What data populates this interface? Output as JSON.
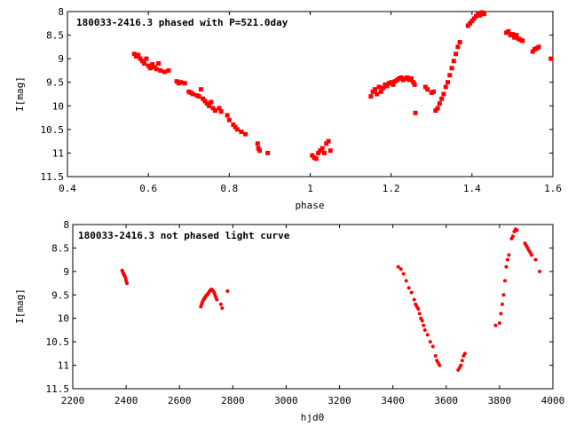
{
  "chart_data": [
    {
      "type": "scatter",
      "title": "180033-2416.3 phased with P=521.0day",
      "xlabel": "phase",
      "ylabel": "I[mag]",
      "xlim": [
        0.4,
        1.6
      ],
      "ylim": [
        11.5,
        8.0
      ],
      "y_inverted": true,
      "grid": false,
      "xticks": [
        "0.4",
        "0.6",
        "0.8",
        "1",
        "1.2",
        "1.4",
        "1.6"
      ],
      "yticks": [
        "8",
        "8.5",
        "9",
        "9.5",
        "10",
        "10.5",
        "11",
        "11.5"
      ],
      "marker_color": "#ff0000",
      "marker": "filled-square",
      "series": [
        {
          "points": [
            [
              0.565,
              8.9
            ],
            [
              0.57,
              8.95
            ],
            [
              0.575,
              8.92
            ],
            [
              0.58,
              9.0
            ],
            [
              0.585,
              9.05
            ],
            [
              0.59,
              9.1
            ],
            [
              0.595,
              9.0
            ],
            [
              0.6,
              9.15
            ],
            [
              0.605,
              9.2
            ],
            [
              0.61,
              9.12
            ],
            [
              0.615,
              9.18
            ],
            [
              0.62,
              9.22
            ],
            [
              0.625,
              9.1
            ],
            [
              0.63,
              9.25
            ],
            [
              0.64,
              9.28
            ],
            [
              0.65,
              9.25
            ],
            [
              0.67,
              9.48
            ],
            [
              0.675,
              9.52
            ],
            [
              0.68,
              9.5
            ],
            [
              0.69,
              9.52
            ],
            [
              0.7,
              9.7
            ],
            [
              0.705,
              9.72
            ],
            [
              0.71,
              9.75
            ],
            [
              0.72,
              9.78
            ],
            [
              0.725,
              9.8
            ],
            [
              0.73,
              9.65
            ],
            [
              0.735,
              9.85
            ],
            [
              0.74,
              9.9
            ],
            [
              0.745,
              9.95
            ],
            [
              0.75,
              10.0
            ],
            [
              0.755,
              9.92
            ],
            [
              0.76,
              10.05
            ],
            [
              0.765,
              10.1
            ],
            [
              0.775,
              10.05
            ],
            [
              0.78,
              10.12
            ],
            [
              0.795,
              10.2
            ],
            [
              0.8,
              10.3
            ],
            [
              0.81,
              10.4
            ],
            [
              0.815,
              10.45
            ],
            [
              0.82,
              10.5
            ],
            [
              0.83,
              10.55
            ],
            [
              0.84,
              10.6
            ],
            [
              0.87,
              10.8
            ],
            [
              0.872,
              10.9
            ],
            [
              0.875,
              10.95
            ],
            [
              0.895,
              11.0
            ],
            [
              1.005,
              11.05
            ],
            [
              1.01,
              11.1
            ],
            [
              1.015,
              11.12
            ],
            [
              1.02,
              11.0
            ],
            [
              1.025,
              10.95
            ],
            [
              1.03,
              10.9
            ],
            [
              1.035,
              11.0
            ],
            [
              1.04,
              10.8
            ],
            [
              1.045,
              10.75
            ],
            [
              1.05,
              10.95
            ],
            [
              1.15,
              9.8
            ],
            [
              1.155,
              9.7
            ],
            [
              1.16,
              9.65
            ],
            [
              1.165,
              9.75
            ],
            [
              1.17,
              9.6
            ],
            [
              1.175,
              9.7
            ],
            [
              1.18,
              9.62
            ],
            [
              1.185,
              9.55
            ],
            [
              1.19,
              9.58
            ],
            [
              1.195,
              9.52
            ],
            [
              1.2,
              9.5
            ],
            [
              1.205,
              9.55
            ],
            [
              1.21,
              9.48
            ],
            [
              1.215,
              9.45
            ],
            [
              1.22,
              9.42
            ],
            [
              1.225,
              9.4
            ],
            [
              1.23,
              9.45
            ],
            [
              1.235,
              9.42
            ],
            [
              1.24,
              9.4
            ],
            [
              1.245,
              9.45
            ],
            [
              1.25,
              9.42
            ],
            [
              1.255,
              9.5
            ],
            [
              1.258,
              9.55
            ],
            [
              1.26,
              10.15
            ],
            [
              1.285,
              9.6
            ],
            [
              1.29,
              9.65
            ],
            [
              1.3,
              9.72
            ],
            [
              1.305,
              9.7
            ],
            [
              1.31,
              10.1
            ],
            [
              1.315,
              10.05
            ],
            [
              1.32,
              9.95
            ],
            [
              1.325,
              9.85
            ],
            [
              1.33,
              9.75
            ],
            [
              1.335,
              9.6
            ],
            [
              1.34,
              9.5
            ],
            [
              1.345,
              9.35
            ],
            [
              1.35,
              9.2
            ],
            [
              1.355,
              9.05
            ],
            [
              1.36,
              8.9
            ],
            [
              1.365,
              8.75
            ],
            [
              1.37,
              8.65
            ],
            [
              1.39,
              8.3
            ],
            [
              1.395,
              8.25
            ],
            [
              1.4,
              8.2
            ],
            [
              1.405,
              8.15
            ],
            [
              1.41,
              8.1
            ],
            [
              1.415,
              8.05
            ],
            [
              1.42,
              8.08
            ],
            [
              1.425,
              8.02
            ],
            [
              1.43,
              8.05
            ],
            [
              1.485,
              8.45
            ],
            [
              1.49,
              8.42
            ],
            [
              1.495,
              8.5
            ],
            [
              1.5,
              8.48
            ],
            [
              1.505,
              8.55
            ],
            [
              1.51,
              8.5
            ],
            [
              1.515,
              8.58
            ],
            [
              1.52,
              8.6
            ],
            [
              1.525,
              8.62
            ],
            [
              1.55,
              8.85
            ],
            [
              1.555,
              8.8
            ],
            [
              1.56,
              8.78
            ],
            [
              1.565,
              8.75
            ],
            [
              1.595,
              9.0
            ]
          ]
        }
      ]
    },
    {
      "type": "scatter",
      "title": "180033-2416.3 not phased light curve",
      "xlabel": "hjd0",
      "ylabel": "I[mag]",
      "xlim": [
        2200,
        4000
      ],
      "ylim": [
        11.5,
        8.0
      ],
      "y_inverted": true,
      "grid": false,
      "xticks": [
        "2200",
        "2400",
        "2600",
        "2800",
        "3000",
        "3200",
        "3400",
        "3600",
        "3800",
        "4000"
      ],
      "yticks": [
        "8",
        "8.5",
        "9",
        "9.5",
        "10",
        "10.5",
        "11",
        "11.5"
      ],
      "marker_color": "#ff0000",
      "marker": "filled-dot",
      "series": [
        {
          "points": [
            [
              2385,
              8.98
            ],
            [
              2388,
              9.02
            ],
            [
              2390,
              9.05
            ],
            [
              2393,
              9.08
            ],
            [
              2395,
              9.1
            ],
            [
              2398,
              9.15
            ],
            [
              2400,
              9.2
            ],
            [
              2403,
              9.25
            ],
            [
              2680,
              9.75
            ],
            [
              2683,
              9.7
            ],
            [
              2686,
              9.65
            ],
            [
              2690,
              9.6
            ],
            [
              2693,
              9.58
            ],
            [
              2696,
              9.55
            ],
            [
              2700,
              9.52
            ],
            [
              2703,
              9.5
            ],
            [
              2706,
              9.48
            ],
            [
              2710,
              9.45
            ],
            [
              2713,
              9.42
            ],
            [
              2716,
              9.4
            ],
            [
              2720,
              9.38
            ],
            [
              2723,
              9.4
            ],
            [
              2726,
              9.42
            ],
            [
              2730,
              9.45
            ],
            [
              2733,
              9.5
            ],
            [
              2736,
              9.55
            ],
            [
              2740,
              9.6
            ],
            [
              2755,
              9.7
            ],
            [
              2760,
              9.78
            ],
            [
              2780,
              9.42
            ],
            [
              3420,
              8.9
            ],
            [
              3430,
              8.95
            ],
            [
              3440,
              9.05
            ],
            [
              3450,
              9.2
            ],
            [
              3460,
              9.35
            ],
            [
              3470,
              9.45
            ],
            [
              3480,
              9.6
            ],
            [
              3485,
              9.7
            ],
            [
              3490,
              9.75
            ],
            [
              3495,
              9.8
            ],
            [
              3500,
              9.9
            ],
            [
              3505,
              10.0
            ],
            [
              3510,
              10.05
            ],
            [
              3515,
              10.15
            ],
            [
              3520,
              10.25
            ],
            [
              3530,
              10.35
            ],
            [
              3540,
              10.5
            ],
            [
              3550,
              10.6
            ],
            [
              3560,
              10.8
            ],
            [
              3565,
              10.9
            ],
            [
              3570,
              10.95
            ],
            [
              3575,
              11.0
            ],
            [
              3645,
              11.1
            ],
            [
              3650,
              11.05
            ],
            [
              3655,
              11.0
            ],
            [
              3660,
              10.9
            ],
            [
              3665,
              10.8
            ],
            [
              3670,
              10.75
            ],
            [
              3785,
              10.15
            ],
            [
              3800,
              10.1
            ],
            [
              3805,
              9.9
            ],
            [
              3810,
              9.7
            ],
            [
              3815,
              9.5
            ],
            [
              3820,
              9.2
            ],
            [
              3825,
              8.9
            ],
            [
              3830,
              8.75
            ],
            [
              3835,
              8.65
            ],
            [
              3845,
              8.3
            ],
            [
              3850,
              8.25
            ],
            [
              3855,
              8.15
            ],
            [
              3860,
              8.1
            ],
            [
              3865,
              8.12
            ],
            [
              3895,
              8.4
            ],
            [
              3900,
              8.45
            ],
            [
              3905,
              8.5
            ],
            [
              3910,
              8.55
            ],
            [
              3915,
              8.6
            ],
            [
              3920,
              8.65
            ],
            [
              3935,
              8.75
            ],
            [
              3950,
              9.0
            ]
          ]
        }
      ]
    }
  ]
}
